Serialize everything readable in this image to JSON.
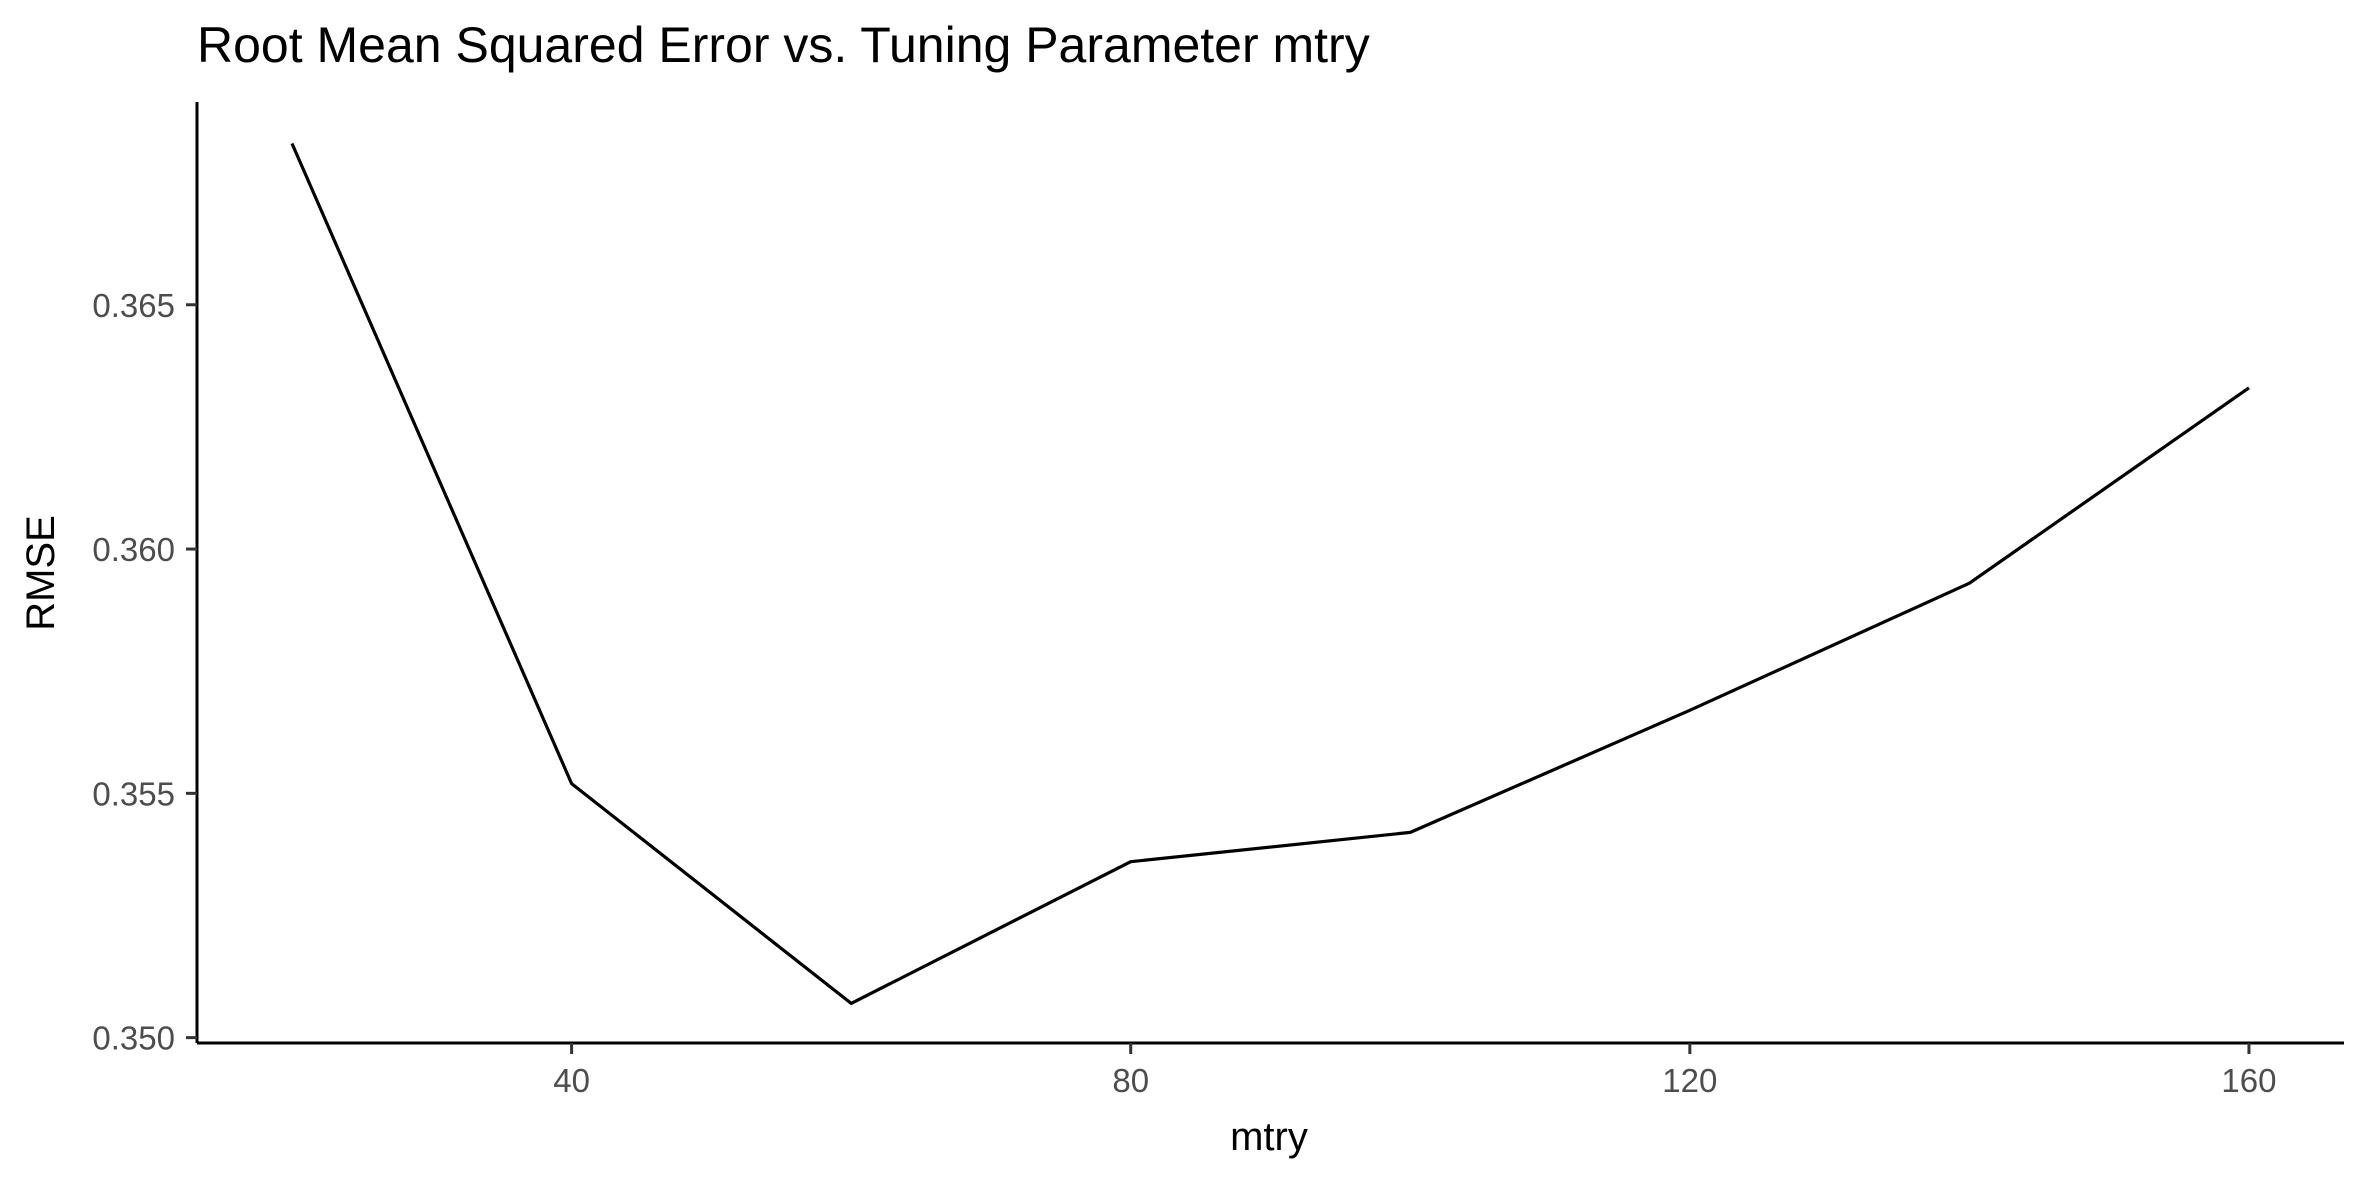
{
  "chart_data": {
    "type": "line",
    "title": "Root Mean Squared Error vs. Tuning Parameter mtry",
    "xlabel": "mtry",
    "ylabel": "RMSE",
    "x": [
      20,
      40,
      60,
      80,
      100,
      120,
      140,
      160
    ],
    "series": [
      {
        "values": [
          0.3683,
          0.3552,
          0.3507,
          0.3536,
          0.3542,
          0.3567,
          0.3593,
          0.3633
        ]
      }
    ],
    "xlim": [
      13.2,
      166.8
    ],
    "ylim": [
      0.34989,
      0.36915
    ],
    "x_ticks": [
      40,
      80,
      120,
      160
    ],
    "x_tick_labels": [
      "40",
      "80",
      "120",
      "160"
    ],
    "y_ticks": [
      0.35,
      0.355,
      0.36,
      0.365
    ],
    "y_tick_labels": [
      "0.350",
      "0.355",
      "0.360",
      "0.365"
    ],
    "grid": false,
    "legend": "none",
    "line_color": "#000000"
  }
}
